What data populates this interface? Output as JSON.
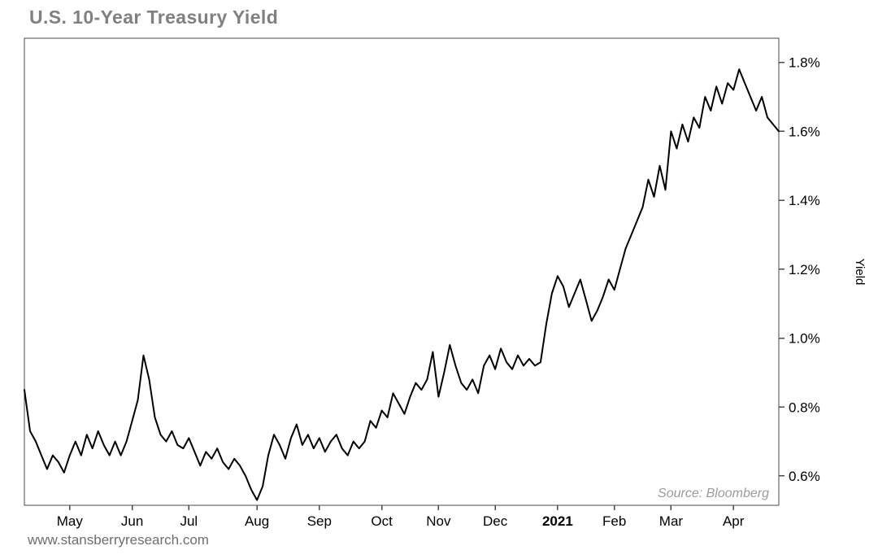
{
  "chart_data": {
    "type": "line",
    "title": "U.S. 10-Year Treasury Yield",
    "ylabel": "Yield",
    "source": "Source: Bloomberg",
    "xlabel": "",
    "ylim": [
      0.515,
      1.87
    ],
    "grid": "off",
    "legend": "none",
    "x_span": "mid-April 2020 to mid-April 2021, ~134 sequential trading observations",
    "y_ticks": [
      {
        "value": 0.6,
        "label": "0.6%"
      },
      {
        "value": 0.8,
        "label": "0.8%"
      },
      {
        "value": 1.0,
        "label": "1.0%"
      },
      {
        "value": 1.2,
        "label": "1.2%"
      },
      {
        "value": 1.4,
        "label": "1.4%"
      },
      {
        "value": 1.6,
        "label": "1.6%"
      },
      {
        "value": 1.8,
        "label": "1.8%"
      }
    ],
    "x_ticks": [
      {
        "label": "May",
        "index": 8,
        "bold": false
      },
      {
        "label": "Jun",
        "index": 19,
        "bold": false
      },
      {
        "label": "Jul",
        "index": 29,
        "bold": false
      },
      {
        "label": "Aug",
        "index": 41,
        "bold": false
      },
      {
        "label": "Sep",
        "index": 52,
        "bold": false
      },
      {
        "label": "Oct",
        "index": 63,
        "bold": false
      },
      {
        "label": "Nov",
        "index": 73,
        "bold": false
      },
      {
        "label": "Dec",
        "index": 83,
        "bold": false
      },
      {
        "label": "2021",
        "index": 94,
        "bold": true
      },
      {
        "label": "Feb",
        "index": 104,
        "bold": false
      },
      {
        "label": "Mar",
        "index": 114,
        "bold": false
      },
      {
        "label": "Apr",
        "index": 125,
        "bold": false
      }
    ],
    "values": [
      0.85,
      0.73,
      0.7,
      0.66,
      0.62,
      0.66,
      0.64,
      0.61,
      0.66,
      0.7,
      0.66,
      0.72,
      0.68,
      0.73,
      0.69,
      0.66,
      0.7,
      0.66,
      0.7,
      0.76,
      0.82,
      0.95,
      0.88,
      0.77,
      0.72,
      0.7,
      0.73,
      0.69,
      0.68,
      0.71,
      0.67,
      0.63,
      0.67,
      0.65,
      0.68,
      0.64,
      0.62,
      0.65,
      0.63,
      0.6,
      0.56,
      0.53,
      0.57,
      0.66,
      0.72,
      0.69,
      0.65,
      0.71,
      0.75,
      0.69,
      0.72,
      0.68,
      0.71,
      0.67,
      0.7,
      0.72,
      0.68,
      0.66,
      0.7,
      0.68,
      0.7,
      0.76,
      0.74,
      0.79,
      0.77,
      0.84,
      0.81,
      0.78,
      0.83,
      0.87,
      0.85,
      0.88,
      0.96,
      0.83,
      0.9,
      0.98,
      0.92,
      0.87,
      0.85,
      0.88,
      0.84,
      0.92,
      0.95,
      0.91,
      0.97,
      0.93,
      0.91,
      0.95,
      0.92,
      0.94,
      0.92,
      0.93,
      1.04,
      1.13,
      1.18,
      1.15,
      1.09,
      1.13,
      1.17,
      1.11,
      1.05,
      1.08,
      1.12,
      1.17,
      1.14,
      1.2,
      1.26,
      1.3,
      1.34,
      1.38,
      1.46,
      1.41,
      1.5,
      1.43,
      1.6,
      1.55,
      1.62,
      1.57,
      1.64,
      1.61,
      1.7,
      1.66,
      1.73,
      1.68,
      1.74,
      1.72,
      1.78,
      1.74,
      1.7,
      1.66,
      1.7,
      1.64,
      1.62,
      1.6
    ],
    "colors": {
      "line": "#000000",
      "frame": "#4a4a4a",
      "tick_text": "#000000",
      "source_text": "#9a9a9a",
      "title_text": "#808080"
    }
  },
  "footer": {
    "website": "www.stansberryresearch.com"
  }
}
